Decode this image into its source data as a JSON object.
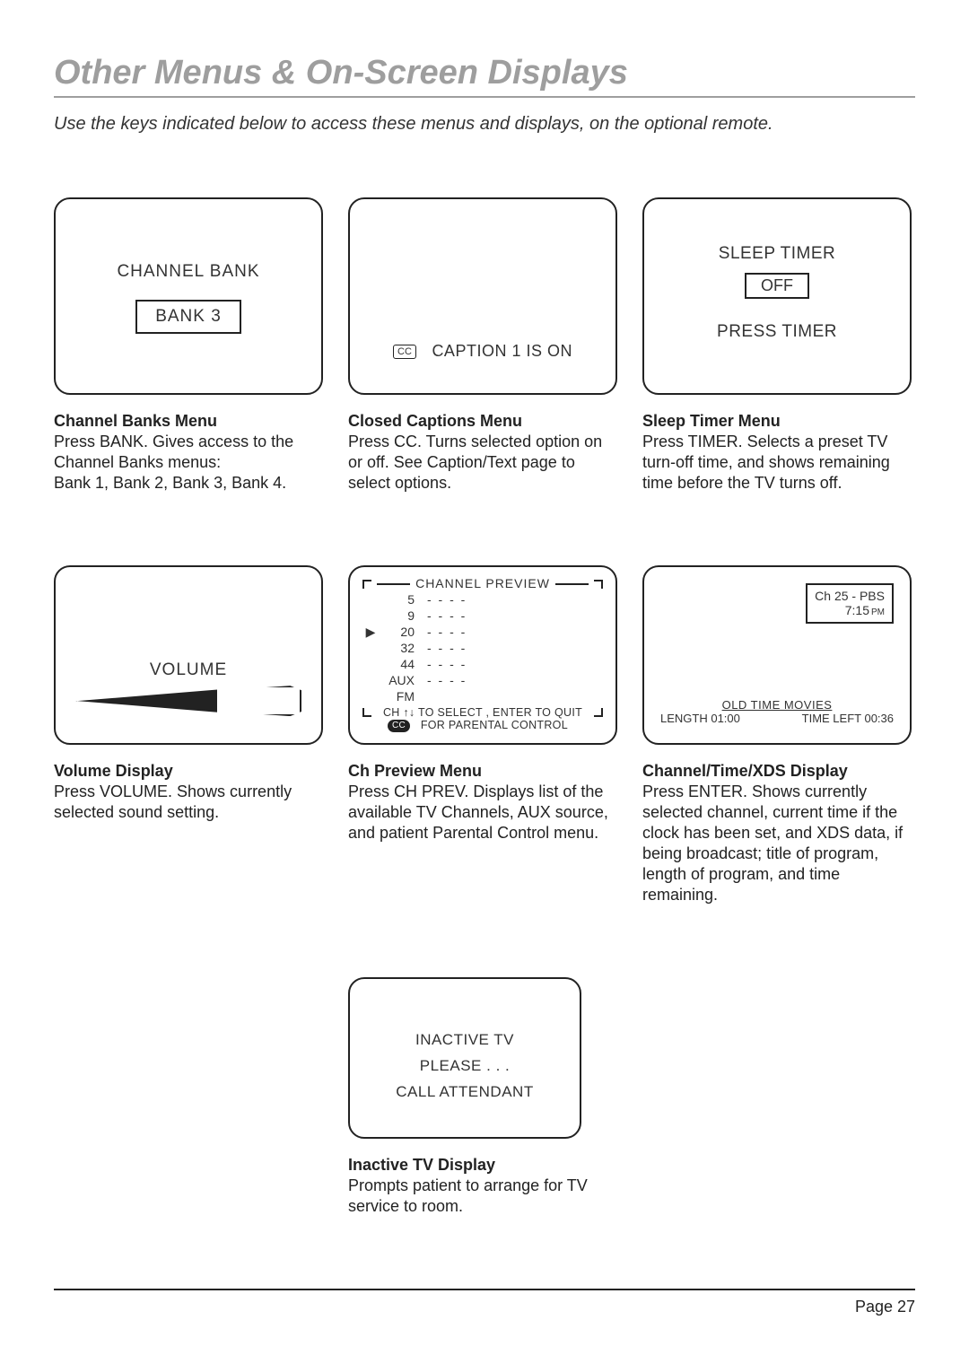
{
  "title": "Other Menus & On-Screen Displays",
  "subhead": "Use the keys indicated below to access these menus and displays, on the optional remote.",
  "page_number": "Page 27",
  "channel_bank": {
    "label": "CHANNEL BANK",
    "value": "BANK 3",
    "desc_title": "Channel Banks Menu",
    "desc_body": "Press BANK. Gives access to the Channel Banks menus:\nBank 1, Bank 2, Bank 3, Bank 4."
  },
  "closed_caption": {
    "badge": "CC",
    "text": "CAPTION 1 IS ON",
    "desc_title": "Closed Captions Menu",
    "desc_body": "Press CC. Turns selected option on or off. See Caption/Text page to select options."
  },
  "sleep_timer": {
    "title": "SLEEP TIMER",
    "value": "OFF",
    "hint": "PRESS TIMER",
    "desc_title": "Sleep Timer Menu",
    "desc_body": "Press TIMER. Selects a preset TV turn-off time, and shows remaining time before the TV turns off."
  },
  "volume": {
    "label": "VOLUME",
    "fill_pct": 62,
    "desc_title": "Volume Display",
    "desc_body": "Press VOLUME. Shows currently selected sound setting."
  },
  "channel_preview": {
    "title": "CHANNEL  PREVIEW",
    "rows": [
      {
        "arrow": "",
        "ch": "5",
        "dash": "- - - -"
      },
      {
        "arrow": "",
        "ch": "9",
        "dash": "- - - -"
      },
      {
        "arrow": "▶",
        "ch": "20",
        "dash": "- - - -"
      },
      {
        "arrow": "",
        "ch": "32",
        "dash": "- - - -"
      },
      {
        "arrow": "",
        "ch": "44",
        "dash": "- - - -"
      },
      {
        "arrow": "",
        "ch": "AUX",
        "dash": "- - - -"
      },
      {
        "arrow": "",
        "ch": "FM",
        "dash": ""
      }
    ],
    "footer1": "CH ↑↓ TO SELECT , ENTER TO QUIT",
    "footer_cc": "CC",
    "footer2": "FOR PARENTAL CONTROL",
    "desc_title": "Ch Preview Menu",
    "desc_body": "Press CH PREV. Displays list of the available TV Channels, AUX source, and patient Parental Control menu."
  },
  "xds": {
    "box_line1": "Ch 25 - PBS",
    "box_time": "7:15",
    "box_ampm": "PM",
    "program": "OLD TIME MOVIES",
    "length": "LENGTH 01:00",
    "time_left": "TIME LEFT 00:36",
    "desc_title": "Channel/Time/XDS Display",
    "desc_body": "Press ENTER. Shows currently selected channel, current time if the clock has been set, and XDS data, if being broadcast; title of program, length of program, and time remaining."
  },
  "inactive": {
    "line1": "INACTIVE TV",
    "line2": "PLEASE . . .",
    "line3": "CALL ATTENDANT",
    "desc_title": "Inactive TV Display",
    "desc_body": "Prompts patient to arrange for TV service to room."
  }
}
